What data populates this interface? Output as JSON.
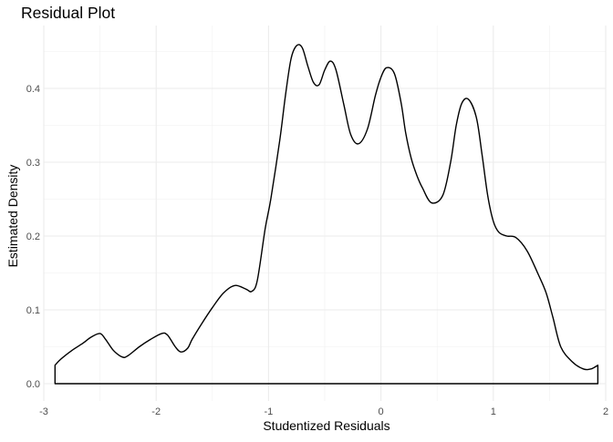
{
  "chart_data": {
    "type": "area",
    "title": "Residual Plot",
    "xlabel": "Studentized Residuals",
    "ylabel": "Estimated Density",
    "xlim": [
      -3.0,
      2.0
    ],
    "ylim": [
      0.0,
      0.46
    ],
    "x_ticks": [
      -3,
      -2,
      -1,
      0,
      1,
      2
    ],
    "x_tick_labels": [
      "-3",
      "-2",
      "-1",
      "0",
      "1",
      "2"
    ],
    "y_ticks": [
      0.0,
      0.1,
      0.2,
      0.3,
      0.4
    ],
    "y_tick_labels": [
      "0.0",
      "0.1",
      "0.2",
      "0.3",
      "0.4"
    ],
    "grid": true,
    "theme": "minimal",
    "series": [
      {
        "x": [
          -2.9,
          -2.85,
          -2.75,
          -2.65,
          -2.58,
          -2.5,
          -2.45,
          -2.38,
          -2.3,
          -2.25,
          -2.15,
          -2.05,
          -1.95,
          -1.9,
          -1.83,
          -1.78,
          -1.72,
          -1.68,
          -1.6,
          -1.5,
          -1.4,
          -1.3,
          -1.2,
          -1.15,
          -1.1,
          -1.03,
          -0.98,
          -0.9,
          -0.85,
          -0.8,
          -0.75,
          -0.7,
          -0.65,
          -0.6,
          -0.55,
          -0.5,
          -0.45,
          -0.4,
          -0.33,
          -0.27,
          -0.2,
          -0.12,
          -0.05,
          0.0,
          0.05,
          0.12,
          0.18,
          0.22,
          0.27,
          0.32,
          0.37,
          0.45,
          0.55,
          0.62,
          0.67,
          0.72,
          0.78,
          0.85,
          0.9,
          0.95,
          1.0,
          1.05,
          1.12,
          1.2,
          1.3,
          1.4,
          1.47,
          1.53,
          1.6,
          1.7,
          1.8,
          1.87,
          1.93
        ],
        "y": [
          0.025,
          0.033,
          0.045,
          0.055,
          0.063,
          0.068,
          0.06,
          0.045,
          0.036,
          0.038,
          0.05,
          0.06,
          0.068,
          0.066,
          0.05,
          0.043,
          0.048,
          0.06,
          0.08,
          0.103,
          0.123,
          0.133,
          0.128,
          0.125,
          0.14,
          0.21,
          0.25,
          0.33,
          0.39,
          0.44,
          0.458,
          0.455,
          0.43,
          0.408,
          0.405,
          0.425,
          0.437,
          0.425,
          0.378,
          0.338,
          0.325,
          0.345,
          0.39,
          0.415,
          0.428,
          0.42,
          0.38,
          0.34,
          0.305,
          0.282,
          0.265,
          0.245,
          0.255,
          0.3,
          0.35,
          0.38,
          0.385,
          0.36,
          0.31,
          0.255,
          0.22,
          0.205,
          0.2,
          0.198,
          0.18,
          0.148,
          0.123,
          0.09,
          0.05,
          0.03,
          0.02,
          0.02,
          0.025
        ]
      }
    ]
  }
}
